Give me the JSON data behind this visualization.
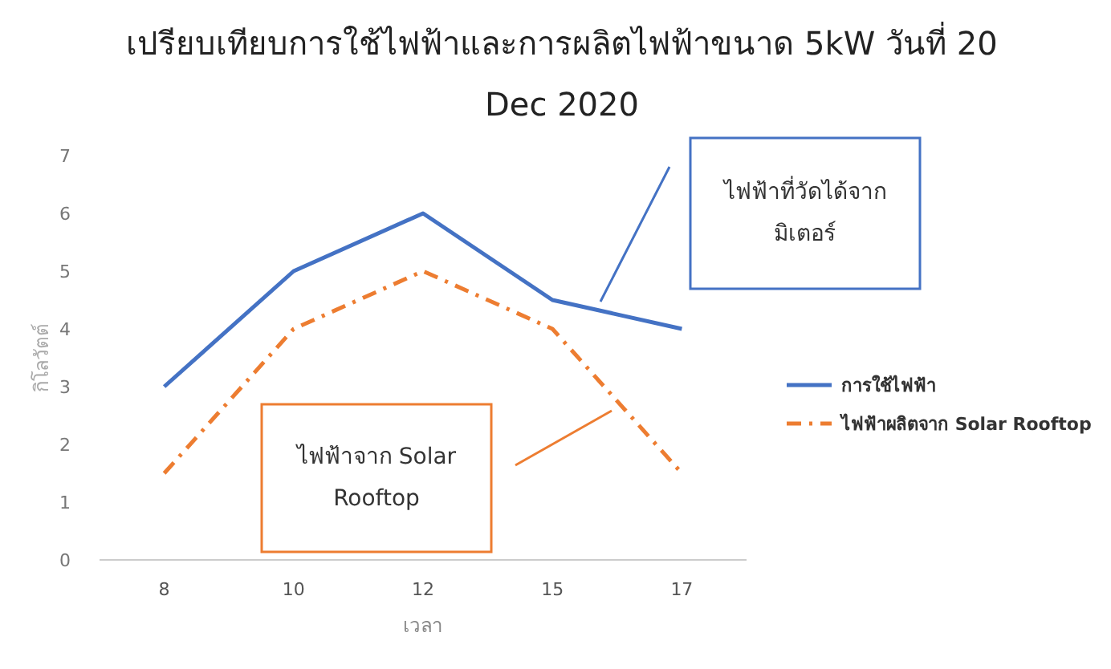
{
  "chart_data": {
    "type": "line",
    "title": "เปรียบเทียบการใช้ไฟฟ้าและการผลิตไฟฟ้าขนาด 5kW วันที่ 20 Dec 2020",
    "xlabel": "เวลา",
    "ylabel": "กิโลวัตต์",
    "categories": [
      "8",
      "10",
      "12",
      "15",
      "17"
    ],
    "series": [
      {
        "name": "การใช้ไฟฟ้า",
        "color": "#4472c4",
        "values": [
          3,
          5,
          6,
          4.5,
          4
        ],
        "line_style": "solid"
      },
      {
        "name": "ไฟฟ้าผลิตจาก Solar Rooftop",
        "color": "#ed7d31",
        "values": [
          1.5,
          4,
          5,
          4,
          1.5
        ],
        "line_style": "dashed"
      }
    ],
    "ylim": [
      0,
      7
    ],
    "yticks": [
      0,
      1,
      2,
      3,
      4,
      5,
      6,
      7
    ],
    "legend": "right",
    "grid": false,
    "marker": "none",
    "annotations": [
      "ไฟฟ้าที่วัดได้จากมิเตอร์",
      "ไฟฟ้าจาก Solar Rooftop"
    ]
  }
}
